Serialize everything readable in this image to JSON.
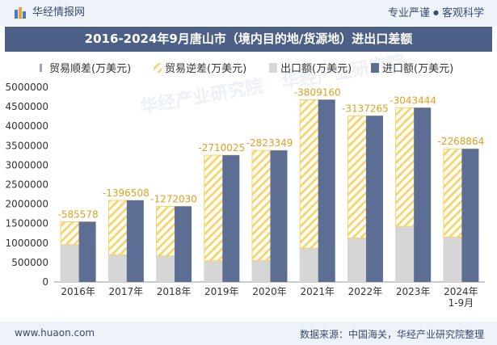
{
  "header": {
    "brand": "华经情报网",
    "slogan_left": "专业严谨",
    "slogan_dot": "●",
    "slogan_right": "客观科学"
  },
  "footer": {
    "site": "www.huaon.com",
    "source": "数据来源：中国海关，华经产业研究院整理"
  },
  "watermark": "华经产业研究院",
  "colors": {
    "title_bg": "#4c5f86",
    "import": "#5d6e94",
    "export": "#d6d6d6",
    "deficit_stripe": "#f5d36a",
    "surplus": "#9aa6bd"
  },
  "chart_data": {
    "type": "bar",
    "title": "2016-2024年9月唐山市（境内目的地/货源地）进出口差额",
    "categories": [
      "2016年",
      "2017年",
      "2018年",
      "2019年",
      "2020年",
      "2021年",
      "2022年",
      "2023年",
      "2024年\n1-9月"
    ],
    "legend": [
      "贸易顺差(万美元)",
      "贸易逆差(万美元)",
      "出口额(万美元)",
      "进口额(万美元)"
    ],
    "legend_position": "top",
    "ylim": [
      0,
      5000000
    ],
    "yticks": [
      0,
      500000,
      1000000,
      1500000,
      2000000,
      2500000,
      3000000,
      3500000,
      4000000,
      4500000,
      5000000
    ],
    "grid": false,
    "series": [
      {
        "name": "出口额(万美元)",
        "values": [
          960000,
          700000,
          670000,
          545000,
          555000,
          870000,
          1130000,
          1430000,
          1150000
        ]
      },
      {
        "name": "进口额(万美元)",
        "values": [
          1545578,
          2096508,
          1942030,
          3255025,
          3378349,
          4679160,
          4267265,
          4473444,
          3418864
        ]
      },
      {
        "name": "贸易逆差(万美元)",
        "values": [
          -585578,
          -1396508,
          -1272030,
          -2710025,
          -2823349,
          -3809160,
          -3137265,
          -3043444,
          -2268864
        ]
      }
    ],
    "data_labels": [
      "-585578",
      "-1396508",
      "-1272030",
      "-2710025",
      "-2823349",
      "-3809160",
      "-3137265",
      "-3043444",
      "-2268864"
    ]
  }
}
